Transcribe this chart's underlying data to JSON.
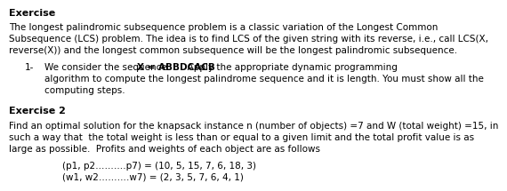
{
  "bg_color": "#ffffff",
  "text_color": "#000000",
  "title1": "Exercise",
  "para1_lines": [
    "The longest palindromic subsequence problem is a classic variation of the Longest Common",
    "Subsequence (LCS) problem. The idea is to find LCS of the given string with its reverse, i.e., call LCS(X,",
    "reverse(X)) and the longest common subsequence will be the longest palindromic subsequence."
  ],
  "bullet_num": "1-",
  "bullet_line1_pre": "We consider the sequence ",
  "bullet_line1_bold": "X = ABBDCACB",
  "bullet_line1_post": ". Apply the appropriate dynamic programming",
  "bullet_line2": "algorithm to compute the longest palindrome sequence and it is length. You must show all the",
  "bullet_line3": "computing steps.",
  "title2": "Exercise 2",
  "para2_lines": [
    "Find an optimal solution for the knapsack instance n (number of objects) =7 and W (total weight) =15, in",
    "such a way that  the total weight is less than or equal to a given limit and the total profit value is as",
    "large as possible.  Profits and weights of each object are as follows"
  ],
  "line1": "(p1, p2……….p7) = (10, 5, 15, 7, 6, 18, 3)",
  "line2": "(w1, w2……….w7) = (2, 3, 5, 7, 6, 4, 1)",
  "font_size": 7.5,
  "font_size_title": 8.0
}
